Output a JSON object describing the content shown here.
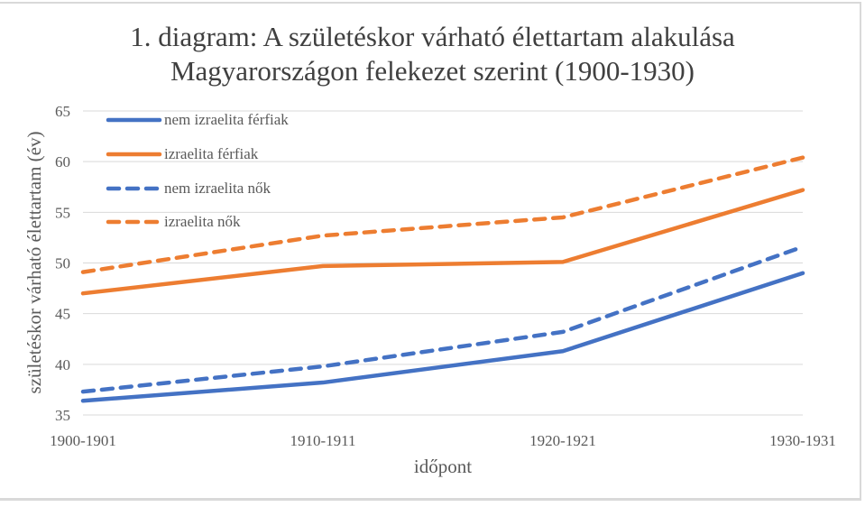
{
  "chart_data": {
    "type": "line",
    "title": "1. diagram: A születéskor várható élettartam alakulása Magyarországon felekezet szerint (1900-1930)",
    "title_lines": [
      "1. diagram: A születéskor várható élettartam alakulása",
      "Magyarországon felekezet szerint (1900-1930)"
    ],
    "xlabel": "időpont",
    "ylabel": "születéskor várható élettartam (év)",
    "categories": [
      "1900-1901",
      "1910-1911",
      "1920-1921",
      "1930-1931"
    ],
    "ylim": [
      35,
      65
    ],
    "yticks": [
      35,
      40,
      45,
      50,
      55,
      60,
      65
    ],
    "grid": true,
    "legend_position": "top-left",
    "series": [
      {
        "name": "nem izraelita férfiak",
        "color": "#4472C4",
        "dash": "solid",
        "values": [
          36.4,
          38.2,
          41.3,
          49.0
        ]
      },
      {
        "name": "izraelita férfiak",
        "color": "#ED7D31",
        "dash": "solid",
        "values": [
          47.0,
          49.7,
          50.1,
          57.2
        ]
      },
      {
        "name": "nem izraelita nők",
        "color": "#4472C4",
        "dash": "dashed",
        "values": [
          37.3,
          39.8,
          43.2,
          51.6
        ]
      },
      {
        "name": "izraelita nők",
        "color": "#ED7D31",
        "dash": "dashed",
        "values": [
          49.1,
          52.7,
          54.5,
          60.4
        ]
      }
    ]
  }
}
